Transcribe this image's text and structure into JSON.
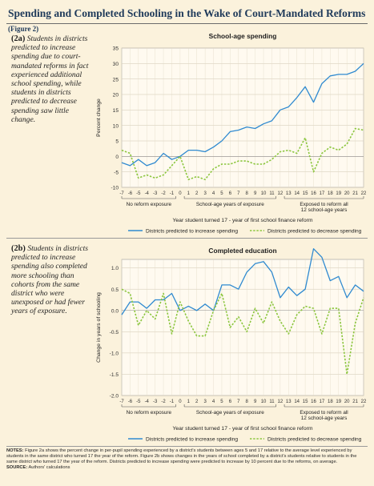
{
  "figure": {
    "title": "Spending and Completed Schooling in the Wake of Court-Mandated Reforms",
    "figure_number": "(Figure 2)"
  },
  "panel_a": {
    "tag": "(2a)",
    "text": "Students in districts predicted to increase spending due to court-mandated reforms in fact experienced additional school spending, while students in districts predicted to decrease spending saw little change."
  },
  "panel_b": {
    "tag": "(2b)",
    "text": "Students in districts predicted to increase spending also completed more schooling than cohorts from the same district who were unexposed or had fewer years of exposure."
  },
  "notes": {
    "label": "NOTES:",
    "text": "Figure 2a shows the percent change in per-pupil spending experienced by a district's students between ages 5 and 17 relative to the average level experienced by students in the same district who turned 17 the year of the reform. Figure 2b shows changes in the years of school completed by a district's students relative to students in the same district who turned 17 the year of the reform. Districts predicted to increase spending were predicted to increase by 10 percent due to the reforms, on average.",
    "source_label": "SOURCE:",
    "source_text": "Authors' calculations"
  },
  "chart_data": [
    {
      "type": "line",
      "title": "School-age spending",
      "ylabel": "Percent change",
      "xlabel": "Year student turned 17 - year of first school finance reform",
      "ylim": [
        -10,
        35
      ],
      "yticks": [
        -10,
        -5,
        0,
        5,
        10,
        15,
        20,
        25,
        30,
        35
      ],
      "x": [
        -7,
        -6,
        -5,
        -4,
        -3,
        -2,
        -1,
        0,
        1,
        2,
        3,
        4,
        5,
        6,
        7,
        8,
        9,
        10,
        11,
        12,
        13,
        14,
        15,
        16,
        17,
        18,
        19,
        20,
        21,
        22
      ],
      "x_tick_labels": [
        "-7",
        "-6",
        "-5",
        "-4",
        "-3",
        "-2",
        "-1",
        "0",
        "1",
        "2",
        "3",
        "4",
        "5",
        "6",
        "7",
        "8",
        "9",
        "10",
        "11",
        "12",
        "13",
        "14",
        "15",
        "16",
        "17",
        "18",
        "19",
        "20",
        "21",
        "22"
      ],
      "grid": true,
      "legend": "bottom",
      "period_labels": [
        "No reform exposure",
        "School-age years of exposure",
        "Exposed to reform all 12 school-age years"
      ],
      "series": [
        {
          "name": "Districts predicted to increase spending",
          "style": "solid",
          "color": "#2f8ad0",
          "values": [
            -2,
            -3,
            -1,
            -3,
            -2,
            1,
            -1,
            0,
            2,
            2,
            1.5,
            3,
            5,
            8,
            8.5,
            9.5,
            9,
            10.5,
            11.5,
            15,
            16,
            19,
            22.5,
            17.5,
            23.5,
            26,
            26.5,
            26.5,
            27.5,
            30
          ]
        },
        {
          "name": "Districts predicted to decrease spending",
          "style": "dashed",
          "color": "#8cc63f",
          "values": [
            2,
            1,
            -7,
            -6,
            -7,
            -6,
            -3,
            0,
            -7.5,
            -6.5,
            -7.5,
            -4,
            -2.5,
            -2.5,
            -1.5,
            -1.5,
            -2.5,
            -2.5,
            -1,
            1.5,
            2,
            1,
            6,
            -5,
            1,
            3,
            2,
            4,
            9,
            8.5
          ]
        }
      ]
    },
    {
      "type": "line",
      "title": "Completed education",
      "ylabel": "Change in years of schooling",
      "xlabel": "Year student turned 17 - year of first school finance reform",
      "ylim": [
        -2.0,
        1.2
      ],
      "yticks": [
        -2.0,
        -1.5,
        -1.0,
        -0.5,
        0.0,
        0.5,
        1.0
      ],
      "ytick_labels": [
        "-2.0",
        "-1.5",
        "-1.0",
        "-0.5",
        "0.0",
        "0.5",
        "1.0"
      ],
      "x": [
        -7,
        -6,
        -5,
        -4,
        -3,
        -2,
        -1,
        0,
        1,
        2,
        3,
        4,
        5,
        6,
        7,
        8,
        9,
        10,
        11,
        12,
        13,
        14,
        15,
        16,
        17,
        18,
        19,
        20,
        21,
        22
      ],
      "x_tick_labels": [
        "-7",
        "-6",
        "-5",
        "-4",
        "-3",
        "-2",
        "-1",
        "0",
        "1",
        "2",
        "3",
        "4",
        "5",
        "6",
        "7",
        "8",
        "9",
        "10",
        "11",
        "12",
        "13",
        "14",
        "15",
        "16",
        "17",
        "18",
        "19",
        "20",
        "21",
        "22"
      ],
      "grid": true,
      "legend": "bottom",
      "period_labels": [
        "No reform exposure",
        "School-age years of exposure",
        "Exposed to reform all 12 school-age years"
      ],
      "series": [
        {
          "name": "Districts predicted to increase spending",
          "style": "solid",
          "color": "#2f8ad0",
          "values": [
            -0.1,
            0.2,
            0.2,
            0.05,
            0.25,
            0.25,
            0.4,
            0.0,
            0.1,
            0.0,
            0.15,
            0.0,
            0.6,
            0.6,
            0.5,
            0.9,
            1.1,
            1.15,
            0.9,
            0.3,
            0.55,
            0.35,
            0.5,
            1.45,
            1.25,
            0.7,
            0.8,
            0.3,
            0.6,
            0.45
          ]
        },
        {
          "name": "Districts predicted to decrease spending",
          "style": "dashed",
          "color": "#8cc63f",
          "values": [
            0.5,
            0.4,
            -0.35,
            0.0,
            -0.2,
            0.4,
            -0.55,
            0.2,
            -0.25,
            -0.6,
            -0.6,
            0.0,
            0.4,
            -0.4,
            -0.15,
            -0.5,
            0.05,
            -0.3,
            0.2,
            -0.25,
            -0.55,
            -0.1,
            0.1,
            0.05,
            -0.55,
            0.05,
            0.05,
            -1.5,
            -0.3,
            0.3
          ]
        }
      ]
    }
  ]
}
